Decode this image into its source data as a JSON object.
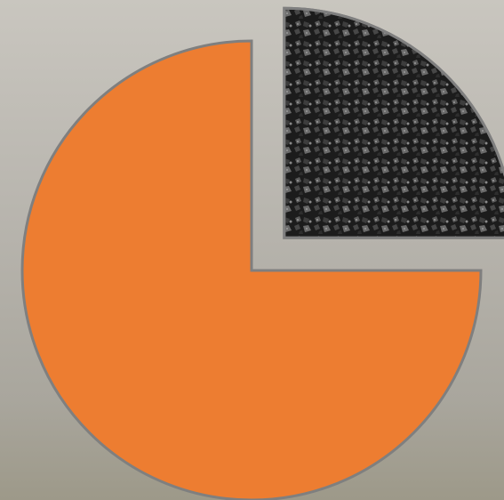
{
  "chart_data": {
    "type": "pie",
    "values": [
      25,
      75
    ],
    "colors": [
      "#1c1c1c",
      "#ed7d31"
    ],
    "explode": [
      1,
      0
    ]
  }
}
